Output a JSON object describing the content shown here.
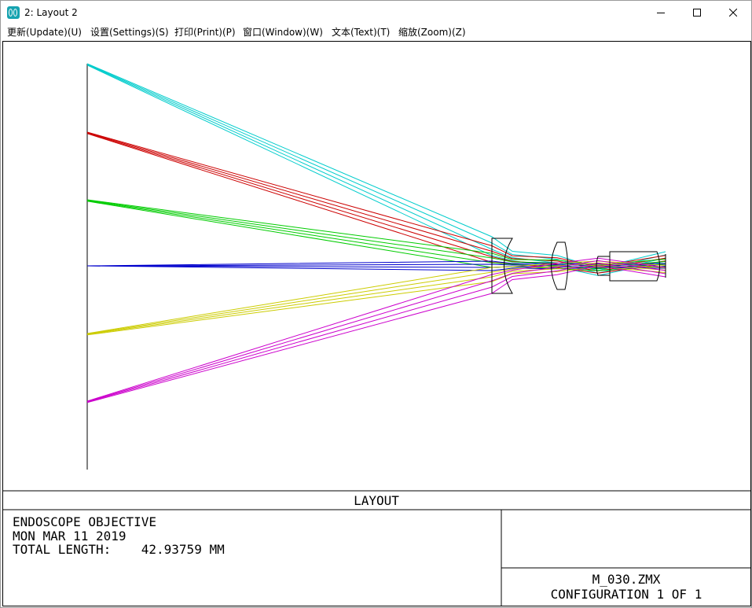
{
  "window": {
    "icon": "zemax-app-icon",
    "title": "2: Layout 2",
    "controls": [
      "minimize-icon",
      "maximize-icon",
      "close-icon"
    ]
  },
  "menu": {
    "items": [
      {
        "label": "更新(Update)(U)"
      },
      {
        "label": "设置(Settings)(S)"
      },
      {
        "label": "打印(Print)(P)"
      },
      {
        "label": "窗口(Window)(W)"
      },
      {
        "label": "文本(Text)(T)"
      },
      {
        "label": "缩放(Zoom)(Z)"
      }
    ]
  },
  "plot": {
    "header": "LAYOUT",
    "info": {
      "line1": "ENDOSCOPE OBJECTIVE",
      "line2": "MON MAR 11 2019",
      "line3": "TOTAL LENGTH:    42.93759 MM"
    },
    "filename": "M_030.ZMX",
    "configuration": "CONFIGURATION 1 OF 1",
    "ray_colors": {
      "field_1": "#0000cc",
      "field_2": "#cccc00",
      "field_3": "#cc00cc",
      "field_4": "#00cc00",
      "field_5": "#cc0000",
      "field_6": "#00cccc"
    }
  }
}
